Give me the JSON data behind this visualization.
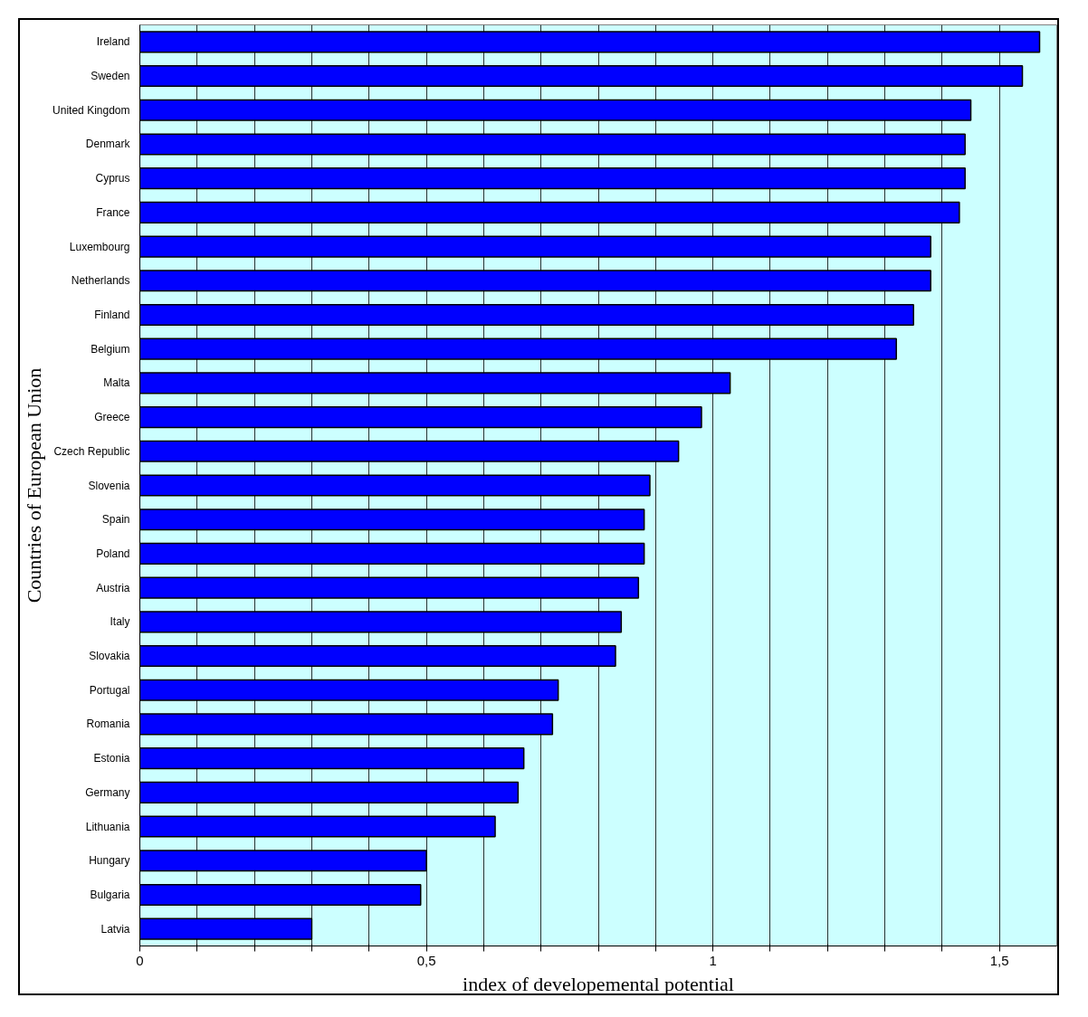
{
  "chart_data": {
    "type": "bar",
    "orientation": "horizontal",
    "xlabel": "index of developemental potential",
    "ylabel": "Countries of European Union",
    "categories": [
      "Ireland",
      "Sweden",
      "United Kingdom",
      "Denmark",
      "Cyprus",
      "France",
      "Luxembourg",
      "Netherlands",
      "Finland",
      "Belgium",
      "Malta",
      "Greece",
      "Czech Republic",
      "Slovenia",
      "Spain",
      "Poland",
      "Austria",
      "Italy",
      "Slovakia",
      "Portugal",
      "Romania",
      "Estonia",
      "Germany",
      "Lithuania",
      "Hungary",
      "Bulgaria",
      "Latvia"
    ],
    "values": [
      1.57,
      1.54,
      1.45,
      1.44,
      1.44,
      1.43,
      1.38,
      1.38,
      1.35,
      1.32,
      1.03,
      0.98,
      0.94,
      0.89,
      0.88,
      0.88,
      0.87,
      0.84,
      0.83,
      0.73,
      0.72,
      0.67,
      0.66,
      0.62,
      0.5,
      0.49,
      0.3
    ],
    "color": "#0000ff",
    "xlim": [
      0,
      1.6
    ],
    "xticks": [
      0,
      {
        "value": 0.1,
        "label": null
      },
      {
        "value": 0.2,
        "label": null
      },
      {
        "value": 0.3,
        "label": null
      },
      {
        "value": 0.4,
        "label": null
      },
      {
        "value": 0.5,
        "label": "0,5"
      },
      {
        "value": 0.6,
        "label": null
      },
      {
        "value": 0.7,
        "label": null
      },
      {
        "value": 0.8,
        "label": null
      },
      {
        "value": 0.9,
        "label": null
      },
      1,
      {
        "value": 1.1,
        "label": null
      },
      {
        "value": 1.2,
        "label": null
      },
      {
        "value": 1.3,
        "label": null
      },
      {
        "value": 1.4,
        "label": null
      },
      {
        "value": 1.5,
        "label": "1,5"
      }
    ],
    "grid": "x"
  }
}
